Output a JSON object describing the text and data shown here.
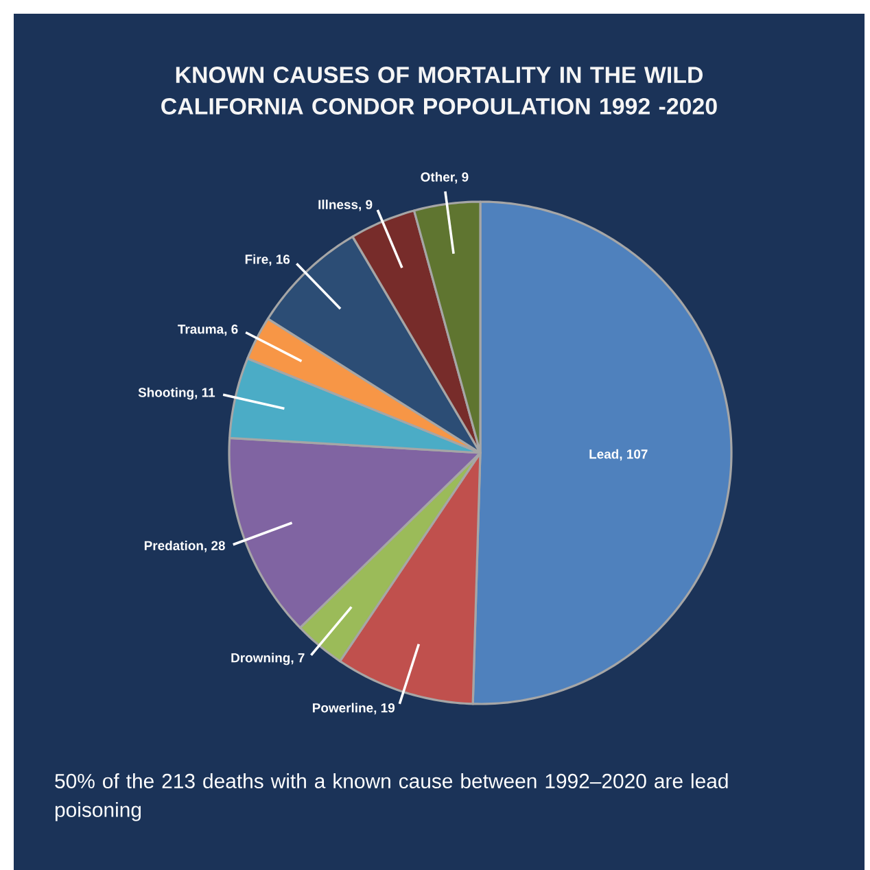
{
  "chart_data": {
    "type": "pie",
    "title": "KNOWN CAUSES OF MORTALITY IN THE WILD CALIFORNIA CONDOR POPOULATION 1992 -2020",
    "categories": [
      "Lead, 107",
      "Powerline, 19",
      "Drowning, 7",
      "Predation, 28",
      "Shooting, 11",
      "Trauma, 6",
      "Fire, 16",
      "Illness, 9",
      "Other, 9"
    ],
    "values": [
      107,
      19,
      7,
      28,
      11,
      6,
      16,
      9,
      9
    ],
    "colors": [
      "#4f81bd",
      "#c0504d",
      "#9bbb59",
      "#8064a2",
      "#4bacc6",
      "#f79646",
      "#2c4d75",
      "#772c2a",
      "#5f7530"
    ],
    "annotations": [
      "50% of the 213 deaths with a known cause between 1992–2020 are lead poisoning"
    ]
  }
}
